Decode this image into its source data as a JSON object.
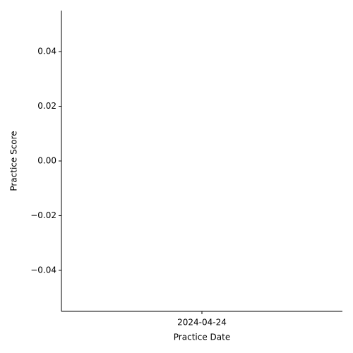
{
  "chart_data": {
    "type": "line",
    "x_label": "Practice Date",
    "y_label": "Practice Score",
    "categories": [
      "2024-04-24"
    ],
    "series": [
      {
        "color": "#1f77b4",
        "values": [
          null
        ]
      }
    ],
    "ylim": [
      -0.055,
      0.055
    ],
    "yticks": [
      {
        "value": -0.04,
        "label": "−0.04"
      },
      {
        "value": -0.02,
        "label": "−0.02"
      },
      {
        "value": 0,
        "label": "0.00"
      },
      0.02,
      0.04
    ]
  }
}
